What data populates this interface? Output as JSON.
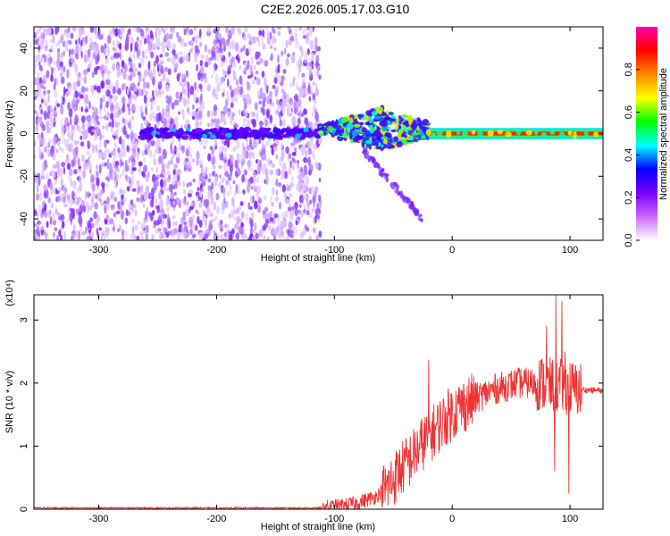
{
  "title": "C2E2.2026.005.17.03.G10",
  "chart_data": [
    {
      "type": "heatmap",
      "name": "spectrogram",
      "xlabel": "Height of straight line (km)",
      "ylabel": "Frequency (Hz)",
      "xlim": [
        -355,
        128
      ],
      "ylim": [
        -50,
        50
      ],
      "xticks": [
        -300,
        -200,
        -100,
        0,
        100
      ],
      "yticks": [
        -40,
        -20,
        0,
        20,
        40
      ],
      "colorbar": {
        "label": "Normalized spectral amplitude",
        "range": [
          0,
          1
        ],
        "ticks": [
          "0.0",
          "0.2",
          "0.4",
          "0.6",
          "0.8"
        ],
        "tick_values": [
          0.0,
          0.2,
          0.4,
          0.6,
          0.8
        ],
        "colors": [
          "#ffffff",
          "#cc66ff",
          "#7700ff",
          "#0000ff",
          "#00ffff",
          "#00ff00",
          "#ffff00",
          "#ff8800",
          "#ff0000",
          "#ff00aa"
        ]
      },
      "features": {
        "noise_region_x": [
          -355,
          -112
        ],
        "carrier_freq_hz": 0,
        "carrier_start_x": -265,
        "scintillation_region_x": [
          -112,
          -20
        ],
        "branch_tail_end": {
          "x": -25,
          "y": -40
        }
      }
    },
    {
      "type": "line",
      "name": "snr",
      "xlabel": "Height of straight line (km)",
      "ylabel": "SNR (10 * v/v)",
      "scale_label": "(x10⁴)",
      "xlim": [
        -355,
        128
      ],
      "ylim": [
        0,
        3.4
      ],
      "xticks": [
        -300,
        -200,
        -100,
        0,
        100
      ],
      "yticks": [
        0,
        1,
        2,
        3
      ],
      "color": "#ee3333",
      "profile": [
        {
          "x": -355,
          "y": 0.02
        },
        {
          "x": -110,
          "y": 0.02
        },
        {
          "x": -95,
          "y": 0.05
        },
        {
          "x": -80,
          "y": 0.1
        },
        {
          "x": -65,
          "y": 0.2
        },
        {
          "x": -55,
          "y": 0.35
        },
        {
          "x": -45,
          "y": 0.6
        },
        {
          "x": -35,
          "y": 0.8
        },
        {
          "x": -25,
          "y": 1.05
        },
        {
          "x": -15,
          "y": 1.25
        },
        {
          "x": -5,
          "y": 1.45
        },
        {
          "x": 5,
          "y": 1.6
        },
        {
          "x": 15,
          "y": 1.7
        },
        {
          "x": 25,
          "y": 1.8
        },
        {
          "x": 35,
          "y": 1.9
        },
        {
          "x": 45,
          "y": 1.95
        },
        {
          "x": 55,
          "y": 2.0
        },
        {
          "x": 65,
          "y": 2.0
        },
        {
          "x": 75,
          "y": 2.0
        },
        {
          "x": 85,
          "y": 1.95
        },
        {
          "x": 95,
          "y": 1.95
        },
        {
          "x": 105,
          "y": 1.9
        },
        {
          "x": 128,
          "y": 1.88
        }
      ],
      "spikes": [
        {
          "x": -20,
          "y": 2.37
        },
        {
          "x": 80,
          "y": 2.9
        },
        {
          "x": 88,
          "y": 3.4
        },
        {
          "x": 93,
          "y": 3.3
        },
        {
          "x": 96,
          "y": 2.5
        },
        {
          "x": 99,
          "y": 0.25
        },
        {
          "x": 87,
          "y": 0.6
        }
      ]
    }
  ]
}
